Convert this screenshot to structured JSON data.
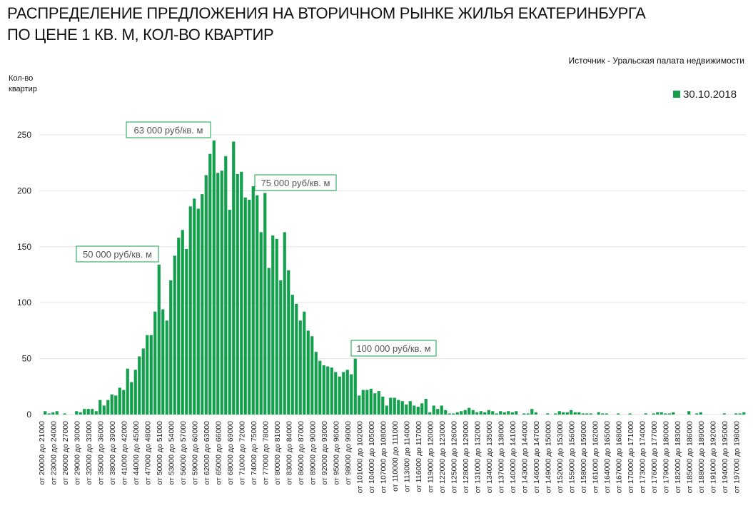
{
  "chart_data": {
    "type": "bar",
    "title": [
      "РАСПРЕДЕЛЕНИЕ ПРЕДЛОЖЕНИЯ НА ВТОРИЧНОМ РЫНКЕ ЖИЛЬЯ ЕКАТЕРИНБУРГА",
      "ПО ЦЕНЕ 1 КВ. М, КОЛ-ВО КВАРТИР"
    ],
    "source": "Источник - Уральская палата недвижимости",
    "y_label": "Кол-во квартир",
    "annotations": [
      "50 000 руб/кв. м",
      "63 000 руб/кв. м",
      "75 000 руб/кв. м",
      "100 000 руб/кв. м"
    ],
    "ylim": [
      0,
      250
    ],
    "yticks": [
      0,
      50,
      100,
      150,
      200,
      250
    ],
    "grid": true,
    "legend": "top-right",
    "categories": [
      "от 20000 до 21000",
      null,
      null,
      "от 23000 до 24000",
      null,
      null,
      "от 26000 до 27000",
      null,
      null,
      "от 29000 до 30000",
      null,
      null,
      "от 32000 до 33000",
      null,
      null,
      "от 35000 до 36000",
      null,
      null,
      "от 38000 до 39000",
      null,
      null,
      "от 41000 до 42000",
      null,
      null,
      "от 44000 до 45000",
      null,
      null,
      "от 47000 до 48000",
      null,
      null,
      "от 50000 до 51000",
      null,
      null,
      "от 53000 до 54000",
      null,
      null,
      "от 56000 до 57000",
      null,
      null,
      "от 59000 до 60000",
      null,
      null,
      "от 62000 до 63000",
      null,
      null,
      "от 65000 до 66000",
      null,
      null,
      "от 68000 до 69000",
      null,
      null,
      "от 71000 до 72000",
      null,
      null,
      "от 74000 до 75000",
      null,
      null,
      "от 77000 до 78000",
      null,
      null,
      "от 80000 до 81000",
      null,
      null,
      "от 83000 до 84000",
      null,
      null,
      "от 86000 до 87000",
      null,
      null,
      "от 89000 до 90000",
      null,
      null,
      "от 92000 до 93000",
      null,
      null,
      "от 95000 до 96000",
      null,
      null,
      "от 98000 до 99000",
      null,
      null,
      "от 101000 до 102000",
      null,
      null,
      "от 104000 до 105000",
      null,
      null,
      "от 107000 до 108000",
      null,
      null,
      "от 110000 до 111000",
      null,
      null,
      "от 113000 до 114000",
      null,
      null,
      "от 116000 до 117000",
      null,
      null,
      "от 119000 до 120000",
      null,
      null,
      "от 122000 до 123000",
      null,
      null,
      "от 125000 до 126000",
      null,
      null,
      "от 128000 до 129000",
      null,
      null,
      "от 131000 до 132000",
      null,
      null,
      "от 134000 до 135000",
      null,
      null,
      "от 137000 до 138000",
      null,
      null,
      "от 140000 до 141000",
      null,
      null,
      "от 143000 до 144000",
      null,
      null,
      "от 146000 до 147000",
      null,
      null,
      "от 149000 до 150000",
      null,
      null,
      "от 152000 до 153000",
      null,
      null,
      "от 155000 до 156000",
      null,
      null,
      "от 158000 до 159000",
      null,
      null,
      "от 161000 до 162000",
      null,
      null,
      "от 164000 до 165000",
      null,
      null,
      "от 167000 до 168000",
      null,
      null,
      "от 170000 до 171000",
      null,
      null,
      "от 173000 до 174000",
      null,
      null,
      "от 176000 до 177000",
      null,
      null,
      "от 179000 до 180000",
      null,
      null,
      "от 182000 до 183000",
      null,
      null,
      "от 185000 до 186000",
      null,
      null,
      "от 188000 до 189000",
      null,
      null,
      "от 191000 до 192000",
      null,
      null,
      "от 194000 до 195000",
      null,
      null,
      "от 197000 до 198000",
      null,
      null
    ],
    "series": [
      {
        "name": "30.10.2018",
        "color": "#12a04c",
        "values": [
          0,
          3,
          1,
          2,
          3,
          0,
          1,
          0,
          0,
          3,
          2,
          5,
          5,
          5,
          3,
          13,
          8,
          13,
          18,
          17,
          24,
          22,
          41,
          29,
          40,
          52,
          59,
          71,
          71,
          92,
          134,
          94,
          84,
          120,
          142,
          158,
          165,
          148,
          186,
          193,
          184,
          197,
          214,
          233,
          245,
          216,
          218,
          231,
          183,
          244,
          215,
          217,
          194,
          192,
          204,
          196,
          163,
          198,
          131,
          160,
          157,
          120,
          163,
          129,
          107,
          99,
          84,
          92,
          75,
          70,
          56,
          48,
          44,
          43,
          42,
          38,
          34,
          38,
          40,
          36,
          50,
          17,
          22,
          22,
          23,
          19,
          21,
          16,
          8,
          15,
          15,
          13,
          12,
          9,
          12,
          8,
          7,
          10,
          14,
          2,
          8,
          5,
          8,
          4,
          1,
          1,
          2,
          3,
          4,
          6,
          4,
          2,
          3,
          2,
          4,
          3,
          1,
          3,
          2,
          3,
          2,
          3,
          0,
          1,
          1,
          5,
          2,
          0,
          0,
          1,
          0,
          1,
          3,
          2,
          2,
          4,
          2,
          2,
          1,
          1,
          1,
          0,
          2,
          1,
          1,
          0,
          0,
          1,
          0,
          0,
          1,
          0,
          0,
          0,
          1,
          0,
          1,
          2,
          2,
          1,
          1,
          2,
          0,
          0,
          0,
          3,
          0,
          1,
          2,
          0,
          0,
          0,
          0,
          0,
          1,
          0,
          0,
          1,
          1,
          2
        ]
      }
    ]
  }
}
